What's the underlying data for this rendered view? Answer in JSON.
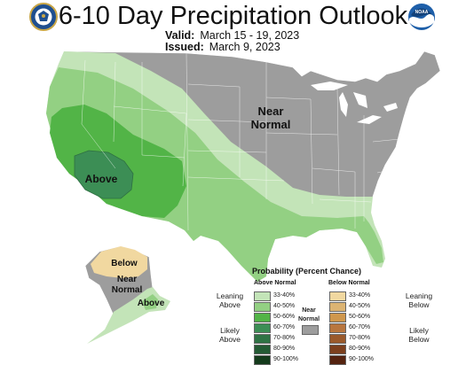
{
  "header": {
    "title": "6-10 Day Precipitation Outlook",
    "valid_label": "Valid:",
    "valid_value": "March 15 - 19, 2023",
    "issued_label": "Issued:",
    "issued_value": "March 9, 2023"
  },
  "logos": {
    "left": "commerce-seal-icon",
    "right": "noaa-logo-icon",
    "right_text": "NOAA"
  },
  "map_labels": {
    "near_normal_conus_1": "Near",
    "near_normal_conus_2": "Normal",
    "above_conus": "Above",
    "below_alaska": "Below",
    "near_normal_alaska_1": "Near",
    "near_normal_alaska_2": "Normal",
    "above_alaska": "Above"
  },
  "legend": {
    "title": "Probability (Percent Chance)",
    "above_header": "Above Normal",
    "below_header": "Below Normal",
    "near_header_1": "Near",
    "near_header_2": "Normal",
    "leaning_above_1": "Leaning",
    "leaning_above_2": "Above",
    "likely_above_1": "Likely",
    "likely_above_2": "Above",
    "leaning_below_1": "Leaning",
    "leaning_below_2": "Below",
    "likely_below_1": "Likely",
    "likely_below_2": "Below",
    "above": [
      {
        "range": "33-40%",
        "color": "#c3e4b8"
      },
      {
        "range": "40-50%",
        "color": "#93d083"
      },
      {
        "range": "50-60%",
        "color": "#52b447"
      },
      {
        "range": "60-70%",
        "color": "#3c8e55"
      },
      {
        "range": "70-80%",
        "color": "#2f7345"
      },
      {
        "range": "80-90%",
        "color": "#235a34"
      },
      {
        "range": "90-100%",
        "color": "#143b1c"
      }
    ],
    "below": [
      {
        "range": "33-40%",
        "color": "#f1d8a0"
      },
      {
        "range": "40-50%",
        "color": "#dcb473"
      },
      {
        "range": "50-60%",
        "color": "#cf974d"
      },
      {
        "range": "60-70%",
        "color": "#b8763f"
      },
      {
        "range": "70-80%",
        "color": "#9a5a2c"
      },
      {
        "range": "80-90%",
        "color": "#7c3f1d"
      },
      {
        "range": "90-100%",
        "color": "#552310"
      }
    ],
    "near_color": "#9d9d9d"
  },
  "colors": {
    "near_normal": "#9d9d9d",
    "above_33_40": "#c3e4b8",
    "above_40_50": "#93d083",
    "above_50_60": "#52b447",
    "above_60_70": "#3c8e55",
    "below_33_40": "#f1d8a0"
  }
}
